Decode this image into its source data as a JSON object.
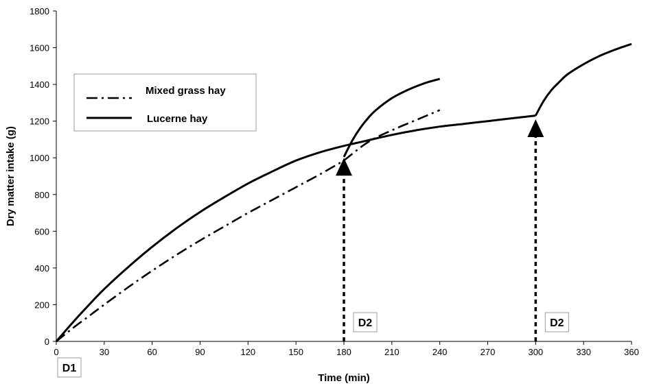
{
  "chart_data": {
    "type": "line",
    "xlabel": "Time (min)",
    "ylabel": "Dry matter intake (g)",
    "xlim": [
      0,
      360
    ],
    "ylim": [
      0,
      1800
    ],
    "xticks": [
      0,
      30,
      60,
      90,
      120,
      150,
      180,
      210,
      240,
      270,
      300,
      330,
      360
    ],
    "yticks": [
      0,
      200,
      400,
      600,
      800,
      1000,
      1200,
      1400,
      1600,
      1800
    ],
    "grid": false,
    "legend_position": "upper-left",
    "series": [
      {
        "name": "Mixed grass hay",
        "style": "dash-dot",
        "segments": [
          {
            "x": [
              0,
              10,
              20,
              30,
              45,
              60,
              75,
              90,
              105,
              120,
              135,
              150,
              165,
              180
            ],
            "y": [
              0,
              70,
              135,
              200,
              295,
              385,
              470,
              550,
              625,
              700,
              770,
              840,
              910,
              985
            ]
          },
          {
            "x": [
              180,
              195,
              210,
              225,
              240
            ],
            "y": [
              985,
              1085,
              1150,
              1205,
              1260
            ]
          }
        ]
      },
      {
        "name": "Lucerne hay",
        "style": "solid",
        "segments": [
          {
            "x": [
              0,
              10,
              20,
              30,
              45,
              60,
              75,
              90,
              105,
              120,
              135,
              150,
              165,
              180,
              195,
              210,
              225,
              240,
              255,
              270,
              285,
              300
            ],
            "y": [
              0,
              100,
              195,
              285,
              405,
              515,
              615,
              705,
              785,
              860,
              925,
              985,
              1030,
              1065,
              1095,
              1125,
              1150,
              1170,
              1185,
              1200,
              1215,
              1230
            ]
          },
          {
            "x": [
              180,
              185,
              190,
              195,
              200,
              210,
              220,
              230,
              240
            ],
            "y": [
              1005,
              1090,
              1160,
              1215,
              1260,
              1325,
              1370,
              1405,
              1430
            ]
          },
          {
            "x": [
              300,
              305,
              310,
              315,
              320,
              330,
              340,
              350,
              360
            ],
            "y": [
              1230,
              1310,
              1370,
              1415,
              1455,
              1510,
              1555,
              1590,
              1620
            ]
          }
        ]
      }
    ],
    "annotations": [
      {
        "label": "D1",
        "x": 0
      },
      {
        "label": "D2",
        "x": 180,
        "arrow_to_y": 1000
      },
      {
        "label": "D2",
        "x": 300,
        "arrow_to_y": 1210
      }
    ]
  }
}
